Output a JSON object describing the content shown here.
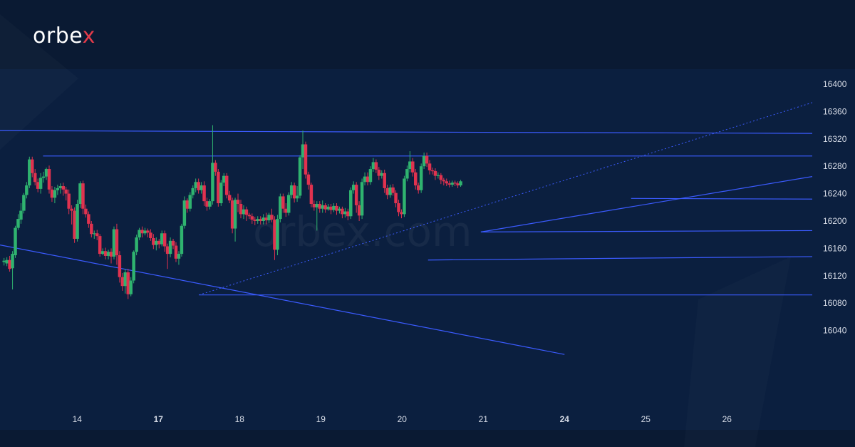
{
  "brand": {
    "name_part1": "orbe",
    "name_part2": "x",
    "watermark": "orbex.com"
  },
  "colors": {
    "background": "#0a1a33",
    "plot_background": "#0b1f3f",
    "up": "#2fb36f",
    "down": "#e0324f",
    "lines": "#3b5bff",
    "text": "#d6dbe6"
  },
  "chart_data": {
    "type": "candlestick",
    "title": "",
    "xlabel": "",
    "ylabel": "",
    "ylim": [
      16010,
      16405
    ],
    "y_ticks": [
      "16400",
      "16360",
      "16320",
      "16280",
      "16240",
      "16200",
      "16160",
      "16120",
      "16080",
      "16040"
    ],
    "x_ticks": [
      {
        "label": "14",
        "x": 0.6,
        "bold": false
      },
      {
        "label": "17",
        "x": 1.6,
        "bold": true
      },
      {
        "label": "18",
        "x": 2.6,
        "bold": false
      },
      {
        "label": "19",
        "x": 3.6,
        "bold": false
      },
      {
        "label": "20",
        "x": 4.6,
        "bold": false
      },
      {
        "label": "21",
        "x": 5.6,
        "bold": false
      },
      {
        "label": "24",
        "x": 6.6,
        "bold": true
      },
      {
        "label": "25",
        "x": 7.6,
        "bold": false
      },
      {
        "label": "26",
        "x": 8.6,
        "bold": false
      }
    ],
    "x_range": [
      -0.35,
      9.65
    ],
    "candle_start_x": -0.3,
    "candle_step": 0.0347,
    "candles": [
      [
        16140,
        16142,
        16135,
        16146
      ],
      [
        16138,
        16143,
        16134,
        16147
      ],
      [
        16143,
        16130,
        16126,
        16149
      ],
      [
        16131,
        16152,
        16100,
        16156
      ],
      [
        16150,
        16190,
        16146,
        16193
      ],
      [
        16190,
        16203,
        16187,
        16210
      ],
      [
        16202,
        16215,
        16196,
        16226
      ],
      [
        16215,
        16238,
        16211,
        16241
      ],
      [
        16238,
        16252,
        16233,
        16257
      ],
      [
        16252,
        16290,
        16248,
        16294
      ],
      [
        16290,
        16270,
        16264,
        16294
      ],
      [
        16270,
        16257,
        16252,
        16276
      ],
      [
        16257,
        16247,
        16242,
        16262
      ],
      [
        16247,
        16263,
        16240,
        16270
      ],
      [
        16263,
        16265,
        16256,
        16272
      ],
      [
        16265,
        16276,
        16260,
        16278
      ],
      [
        16276,
        16246,
        16240,
        16281
      ],
      [
        16246,
        16234,
        16228,
        16251
      ],
      [
        16234,
        16245,
        16226,
        16250
      ],
      [
        16245,
        16248,
        16238,
        16253
      ],
      [
        16248,
        16251,
        16240,
        16255
      ],
      [
        16251,
        16246,
        16237,
        16256
      ],
      [
        16246,
        16240,
        16230,
        16250
      ],
      [
        16240,
        16218,
        16210,
        16246
      ],
      [
        16218,
        16215,
        16195,
        16223
      ],
      [
        16215,
        16174,
        16168,
        16220
      ],
      [
        16174,
        16225,
        16170,
        16231
      ],
      [
        16225,
        16255,
        16219,
        16258
      ],
      [
        16255,
        16218,
        16210,
        16259
      ],
      [
        16218,
        16210,
        16205,
        16224
      ],
      [
        16210,
        16196,
        16190,
        16214
      ],
      [
        16196,
        16181,
        16176,
        16200
      ],
      [
        16181,
        16182,
        16174,
        16186
      ],
      [
        16182,
        16178,
        16172,
        16187
      ],
      [
        16178,
        16152,
        16148,
        16181
      ],
      [
        16152,
        16156,
        16150,
        16160
      ],
      [
        16156,
        16149,
        16144,
        16161
      ],
      [
        16149,
        16155,
        16144,
        16158
      ],
      [
        16155,
        16148,
        16138,
        16160
      ],
      [
        16148,
        16188,
        16144,
        16192
      ],
      [
        16188,
        16150,
        16136,
        16196
      ],
      [
        16150,
        16118,
        16110,
        16156
      ],
      [
        16118,
        16105,
        16098,
        16124
      ],
      [
        16105,
        16125,
        16094,
        16130
      ],
      [
        16125,
        16093,
        16086,
        16130
      ],
      [
        16093,
        16113,
        16090,
        16118
      ],
      [
        16113,
        16155,
        16109,
        16157
      ],
      [
        16155,
        16176,
        16150,
        16180
      ],
      [
        16176,
        16187,
        16172,
        16190
      ],
      [
        16187,
        16182,
        16176,
        16192
      ],
      [
        16182,
        16186,
        16179,
        16190
      ],
      [
        16186,
        16183,
        16176,
        16189
      ],
      [
        16183,
        16175,
        16171,
        16188
      ],
      [
        16175,
        16165,
        16159,
        16181
      ],
      [
        16165,
        16171,
        16157,
        16176
      ],
      [
        16171,
        16166,
        16160,
        16174
      ],
      [
        16166,
        16182,
        16163,
        16186
      ],
      [
        16182,
        16163,
        16155,
        16186
      ],
      [
        16163,
        16152,
        16130,
        16167
      ],
      [
        16152,
        16171,
        16147,
        16176
      ],
      [
        16171,
        16164,
        16159,
        16174
      ],
      [
        16164,
        16145,
        16140,
        16169
      ],
      [
        16145,
        16152,
        16136,
        16156
      ],
      [
        16152,
        16193,
        16148,
        16196
      ],
      [
        16193,
        16230,
        16189,
        16236
      ],
      [
        16230,
        16218,
        16212,
        16233
      ],
      [
        16218,
        16238,
        16214,
        16242
      ],
      [
        16238,
        16248,
        16233,
        16252
      ],
      [
        16248,
        16257,
        16242,
        16262
      ],
      [
        16257,
        16245,
        16240,
        16262
      ],
      [
        16245,
        16252,
        16240,
        16257
      ],
      [
        16252,
        16229,
        16222,
        16258
      ],
      [
        16229,
        16221,
        16215,
        16234
      ],
      [
        16221,
        16229,
        16217,
        16232
      ],
      [
        16229,
        16285,
        16224,
        16340
      ],
      [
        16285,
        16272,
        16266,
        16289
      ],
      [
        16272,
        16226,
        16221,
        16276
      ],
      [
        16226,
        16256,
        16222,
        16260
      ],
      [
        16256,
        16266,
        16251,
        16270
      ],
      [
        16266,
        16238,
        16233,
        16270
      ],
      [
        16238,
        16230,
        16226,
        16244
      ],
      [
        16230,
        16189,
        16182,
        16234
      ],
      [
        16189,
        16231,
        16170,
        16234
      ],
      [
        16231,
        16225,
        16213,
        16240
      ],
      [
        16225,
        16210,
        16204,
        16231
      ],
      [
        16210,
        16217,
        16203,
        16223
      ],
      [
        16217,
        16209,
        16200,
        16221
      ],
      [
        16209,
        16207,
        16203,
        16212
      ],
      [
        16207,
        16202,
        16196,
        16211
      ],
      [
        16202,
        16200,
        16194,
        16206
      ],
      [
        16200,
        16203,
        16196,
        16207
      ],
      [
        16203,
        16200,
        16195,
        16207
      ],
      [
        16200,
        16205,
        16195,
        16210
      ],
      [
        16205,
        16201,
        16195,
        16212
      ],
      [
        16201,
        16209,
        16197,
        16212
      ],
      [
        16209,
        16202,
        16198,
        16218
      ],
      [
        16202,
        16158,
        16143,
        16207
      ],
      [
        16158,
        16203,
        16150,
        16209
      ],
      [
        16203,
        16236,
        16198,
        16240
      ],
      [
        16236,
        16218,
        16212,
        16240
      ],
      [
        16218,
        16212,
        16206,
        16226
      ],
      [
        16212,
        16238,
        16208,
        16242
      ],
      [
        16238,
        16252,
        16233,
        16257
      ],
      [
        16252,
        16233,
        16227,
        16256
      ],
      [
        16233,
        16237,
        16228,
        16251
      ],
      [
        16237,
        16293,
        16233,
        16296
      ],
      [
        16293,
        16312,
        16276,
        16332
      ],
      [
        16312,
        16268,
        16262,
        16316
      ],
      [
        16268,
        16253,
        16246,
        16272
      ],
      [
        16253,
        16225,
        16220,
        16256
      ],
      [
        16225,
        16220,
        16215,
        16230
      ],
      [
        16220,
        16225,
        16186,
        16229
      ],
      [
        16225,
        16218,
        16212,
        16229
      ],
      [
        16218,
        16223,
        16212,
        16230
      ],
      [
        16223,
        16217,
        16212,
        16226
      ],
      [
        16217,
        16221,
        16215,
        16225
      ],
      [
        16221,
        16216,
        16210,
        16225
      ],
      [
        16216,
        16222,
        16213,
        16226
      ],
      [
        16222,
        16215,
        16209,
        16226
      ],
      [
        16215,
        16218,
        16211,
        16221
      ],
      [
        16218,
        16210,
        16204,
        16221
      ],
      [
        16210,
        16214,
        16205,
        16219
      ],
      [
        16214,
        16207,
        16201,
        16218
      ],
      [
        16207,
        16245,
        16203,
        16249
      ],
      [
        16245,
        16253,
        16240,
        16258
      ],
      [
        16253,
        16223,
        16212,
        16257
      ],
      [
        16223,
        16208,
        16200,
        16229
      ],
      [
        16208,
        16257,
        16203,
        16262
      ],
      [
        16257,
        16265,
        16252,
        16271
      ],
      [
        16265,
        16257,
        16252,
        16271
      ],
      [
        16257,
        16276,
        16253,
        16280
      ],
      [
        16276,
        16286,
        16272,
        16292
      ],
      [
        16286,
        16275,
        16270,
        16290
      ],
      [
        16275,
        16266,
        16260,
        16279
      ],
      [
        16266,
        16270,
        16262,
        16274
      ],
      [
        16270,
        16248,
        16241,
        16275
      ],
      [
        16248,
        16238,
        16232,
        16253
      ],
      [
        16238,
        16249,
        16234,
        16253
      ],
      [
        16249,
        16241,
        16237,
        16254
      ],
      [
        16241,
        16226,
        16220,
        16245
      ],
      [
        16226,
        16213,
        16207,
        16231
      ],
      [
        16213,
        16210,
        16204,
        16217
      ],
      [
        16210,
        16262,
        16206,
        16266
      ],
      [
        16262,
        16276,
        16258,
        16281
      ],
      [
        16276,
        16287,
        16271,
        16302
      ],
      [
        16287,
        16271,
        16265,
        16292
      ],
      [
        16271,
        16252,
        16246,
        16276
      ],
      [
        16252,
        16245,
        16240,
        16256
      ],
      [
        16245,
        16280,
        16241,
        16284
      ],
      [
        16280,
        16295,
        16276,
        16300
      ],
      [
        16295,
        16284,
        16279,
        16300
      ],
      [
        16284,
        16274,
        16268,
        16289
      ],
      [
        16274,
        16273,
        16268,
        16278
      ],
      [
        16273,
        16266,
        16260,
        16277
      ],
      [
        16266,
        16267,
        16262,
        16271
      ],
      [
        16267,
        16260,
        16254,
        16270
      ],
      [
        16260,
        16258,
        16252,
        16263
      ],
      [
        16258,
        16255,
        16251,
        16262
      ],
      [
        16255,
        16253,
        16249,
        16259
      ],
      [
        16253,
        16256,
        16250,
        16259
      ],
      [
        16256,
        16255,
        16251,
        16259
      ],
      [
        16255,
        16252,
        16248,
        16258
      ],
      [
        16252,
        16258,
        16250,
        16260
      ]
    ],
    "trend_lines": [
      {
        "from": [
          -0.35,
          16332
        ],
        "to": [
          9.65,
          16328
        ],
        "style": "solid"
      },
      {
        "from": [
          0.18,
          16295
        ],
        "to": [
          9.65,
          16295
        ],
        "style": "solid"
      },
      {
        "from": [
          -0.35,
          16165
        ],
        "to": [
          6.6,
          16005
        ],
        "style": "solid"
      },
      {
        "from": [
          2.1,
          16092
        ],
        "to": [
          9.65,
          16092
        ],
        "style": "solid"
      },
      {
        "from": [
          4.92,
          16143
        ],
        "to": [
          9.65,
          16148
        ],
        "style": "solid"
      },
      {
        "from": [
          5.57,
          16184
        ],
        "to": [
          9.65,
          16186
        ],
        "style": "solid"
      },
      {
        "from": [
          7.42,
          16233
        ],
        "to": [
          9.65,
          16232
        ],
        "style": "solid"
      },
      {
        "from": [
          5.57,
          16184
        ],
        "to": [
          9.65,
          16265
        ],
        "style": "solid"
      },
      {
        "from": [
          2.1,
          16092
        ],
        "to": [
          9.65,
          16373
        ],
        "style": "dotted"
      }
    ]
  }
}
